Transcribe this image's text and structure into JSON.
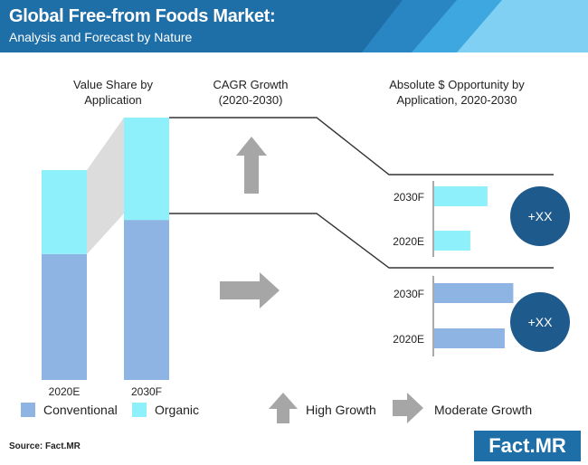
{
  "header": {
    "title": "Global Free-from Foods Market:",
    "subtitle": "Analysis and Forecast by Nature"
  },
  "columns": {
    "value_share": "Value Share by Application",
    "cagr": "CAGR Growth (2020-2030)",
    "opportunity": "Absolute $ Opportunity by Application, 2020-2030"
  },
  "badges": [
    "+XX",
    "+XX"
  ],
  "legend": {
    "conventional": "Conventional",
    "organic": "Organic",
    "high_growth": "High Growth",
    "moderate_growth": "Moderate Growth"
  },
  "footer": {
    "source": "Source: Fact.MR",
    "brand": "Fact.MR"
  },
  "colors": {
    "conventional": "#8db4e2",
    "organic": "#8ef0fa",
    "header": "#1e6fa8",
    "badge": "#1f5a8c",
    "arrow": "#a6a6a6"
  },
  "chart_data": [
    {
      "type": "bar",
      "stacked": true,
      "categories": [
        "2020E",
        "2030F"
      ],
      "series": [
        {
          "name": "Conventional",
          "values": [
            60,
            61
          ]
        },
        {
          "name": "Organic",
          "values": [
            40,
            39
          ]
        }
      ],
      "ylim": [
        0,
        100
      ]
    },
    {
      "type": "bar",
      "orientation": "horizontal",
      "segment": "Organic",
      "categories": [
        "2030F",
        "2020E"
      ],
      "values": [
        62,
        42
      ],
      "xlim": [
        0,
        100
      ]
    },
    {
      "type": "bar",
      "orientation": "horizontal",
      "segment": "Conventional",
      "categories": [
        "2030F",
        "2020E"
      ],
      "values": [
        92,
        82
      ],
      "xlim": [
        0,
        100
      ]
    }
  ]
}
